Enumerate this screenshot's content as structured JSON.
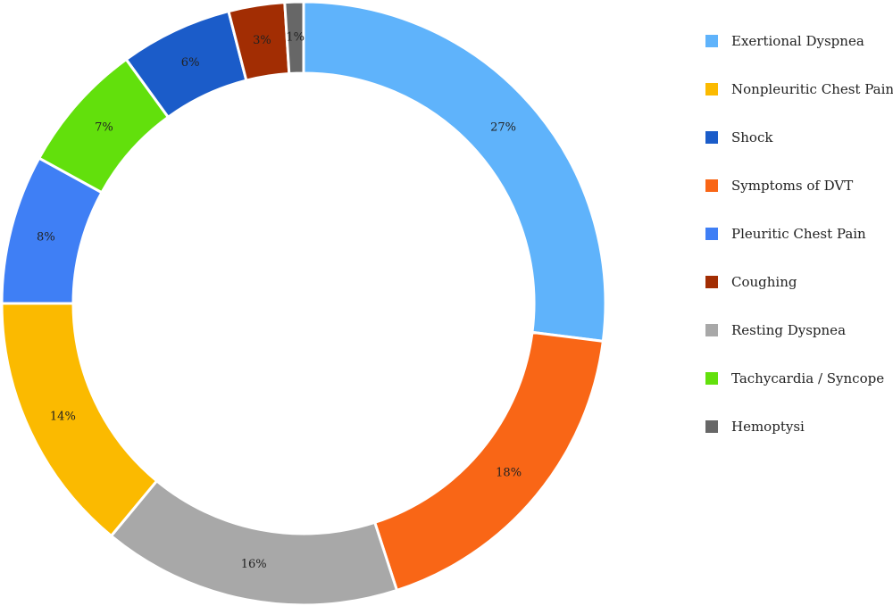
{
  "chart_data": {
    "type": "pie",
    "donut": true,
    "start": "12 o'clock",
    "direction": "clockwise",
    "slices": [
      {
        "name": "Exertional Dyspnea",
        "value": 27,
        "label": "27%",
        "color": "#5fb3fb"
      },
      {
        "name": "Symptoms of DVT",
        "value": 18,
        "label": "18%",
        "color": "#f96616"
      },
      {
        "name": "Resting Dyspnea",
        "value": 16,
        "label": "16%",
        "color": "#a8a8a8"
      },
      {
        "name": "Nonpleuritic Chest Pain",
        "value": 14,
        "label": "14%",
        "color": "#fbba00"
      },
      {
        "name": "Pleuritic Chest Pain",
        "value": 8,
        "label": "8%",
        "color": "#3f7ff5"
      },
      {
        "name": "Tachycardia / Syncope",
        "value": 7,
        "label": "7%",
        "color": "#62e00c"
      },
      {
        "name": "Shock",
        "value": 6,
        "label": "6%",
        "color": "#1b5cc9"
      },
      {
        "name": "Coughing",
        "value": 3,
        "label": "3%",
        "color": "#a22d03"
      },
      {
        "name": "Hemoptysi",
        "value": 1,
        "label": "1%",
        "color": "#676767"
      }
    ],
    "legend": {
      "position": "right",
      "items": [
        {
          "name": "Exertional Dyspnea",
          "color": "#5fb3fb"
        },
        {
          "name": "Nonpleuritic Chest Pain",
          "color": "#fbba00"
        },
        {
          "name": "Shock",
          "color": "#1b5cc9"
        },
        {
          "name": "Symptoms of DVT",
          "color": "#f96616"
        },
        {
          "name": "Pleuritic Chest Pain",
          "color": "#3f7ff5"
        },
        {
          "name": "Coughing",
          "color": "#a22d03"
        },
        {
          "name": "Resting Dyspnea",
          "color": "#a8a8a8"
        },
        {
          "name": "Tachycardia / Syncope",
          "color": "#62e00c"
        },
        {
          "name": "Hemoptysi",
          "color": "#676767"
        }
      ]
    }
  }
}
